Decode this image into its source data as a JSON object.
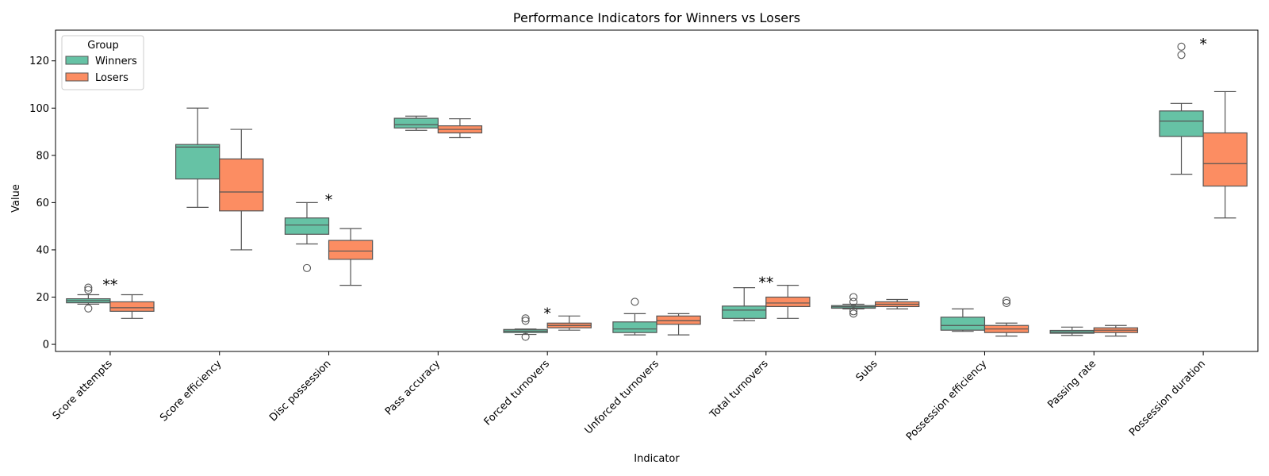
{
  "chart_data": {
    "type": "box",
    "title": "Performance Indicators for Winners vs Losers",
    "xlabel": "Indicator",
    "ylabel": "Value",
    "ylim": [
      -3,
      133
    ],
    "yticks": [
      0,
      20,
      40,
      60,
      80,
      100,
      120
    ],
    "grid": false,
    "legend": {
      "title": "Group",
      "placement": "top-left"
    },
    "categories": [
      "Score attempts",
      "Score efficiency",
      "Disc possession",
      "Pass accuracy",
      "Forced turnovers",
      "Unforced turnovers",
      "Total turnovers",
      "Subs",
      "Possession efficiency",
      "Passing rate",
      "Possession duration"
    ],
    "series": [
      {
        "name": "Winners",
        "color": "#66c2a5",
        "boxes": [
          {
            "q1": 17.6,
            "median": 18.5,
            "q3": 19.3,
            "whislo": 17.0,
            "whishi": 21.0,
            "fliers": [
              15.2,
              23.0,
              24.0
            ]
          },
          {
            "q1": 70.0,
            "median": 83.5,
            "q3": 84.6,
            "whislo": 58.0,
            "whishi": 100.0,
            "fliers": []
          },
          {
            "q1": 46.6,
            "median": 50.5,
            "q3": 53.5,
            "whislo": 42.5,
            "whishi": 60.0,
            "fliers": [
              32.3
            ]
          },
          {
            "q1": 91.6,
            "median": 93.0,
            "q3": 95.7,
            "whislo": 90.6,
            "whishi": 96.6,
            "fliers": []
          },
          {
            "q1": 5.0,
            "median": 5.6,
            "q3": 6.3,
            "whislo": 4.2,
            "whishi": 6.5,
            "fliers": [
              3.2,
              10.0,
              11.0
            ]
          },
          {
            "q1": 5.0,
            "median": 6.5,
            "q3": 9.5,
            "whislo": 4.0,
            "whishi": 13.0,
            "fliers": [
              18.0
            ]
          },
          {
            "q1": 11.0,
            "median": 14.5,
            "q3": 16.2,
            "whislo": 10.0,
            "whishi": 24.0,
            "fliers": []
          },
          {
            "q1": 15.3,
            "median": 15.9,
            "q3": 16.4,
            "whislo": 15.0,
            "whishi": 17.0,
            "fliers": [
              13.0,
              14.0,
              18.0,
              20.0
            ]
          },
          {
            "q1": 6.0,
            "median": 8.0,
            "q3": 11.5,
            "whislo": 5.5,
            "whishi": 15.0,
            "fliers": []
          },
          {
            "q1": 4.7,
            "median": 5.2,
            "q3": 5.9,
            "whislo": 3.8,
            "whishi": 7.3,
            "fliers": []
          },
          {
            "q1": 88.0,
            "median": 94.5,
            "q3": 98.8,
            "whislo": 72.0,
            "whishi": 102.0,
            "fliers": [
              122.5,
              126.0
            ]
          }
        ]
      },
      {
        "name": "Losers",
        "color": "#fc8d62",
        "boxes": [
          {
            "q1": 14.0,
            "median": 15.5,
            "q3": 18.0,
            "whislo": 11.0,
            "whishi": 21.0,
            "fliers": []
          },
          {
            "q1": 56.5,
            "median": 64.5,
            "q3": 78.5,
            "whislo": 40.0,
            "whishi": 91.0,
            "fliers": []
          },
          {
            "q1": 36.0,
            "median": 39.5,
            "q3": 44.0,
            "whislo": 25.0,
            "whishi": 49.0,
            "fliers": []
          },
          {
            "q1": 89.5,
            "median": 91.0,
            "q3": 92.5,
            "whislo": 87.5,
            "whishi": 95.5,
            "fliers": []
          },
          {
            "q1": 7.0,
            "median": 8.0,
            "q3": 9.0,
            "whislo": 6.0,
            "whishi": 12.0,
            "fliers": []
          },
          {
            "q1": 8.5,
            "median": 10.0,
            "q3": 12.0,
            "whislo": 4.0,
            "whishi": 13.0,
            "fliers": []
          },
          {
            "q1": 16.0,
            "median": 17.5,
            "q3": 20.0,
            "whislo": 11.0,
            "whishi": 25.0,
            "fliers": []
          },
          {
            "q1": 16.0,
            "median": 17.0,
            "q3": 18.0,
            "whislo": 15.0,
            "whishi": 19.0,
            "fliers": []
          },
          {
            "q1": 5.0,
            "median": 6.5,
            "q3": 8.0,
            "whislo": 3.5,
            "whishi": 9.0,
            "fliers": [
              17.5,
              18.5
            ]
          },
          {
            "q1": 5.0,
            "median": 6.0,
            "q3": 7.0,
            "whislo": 3.5,
            "whishi": 8.0,
            "fliers": []
          },
          {
            "q1": 67.0,
            "median": 76.5,
            "q3": 89.5,
            "whislo": 53.5,
            "whishi": 107.0,
            "fliers": []
          }
        ]
      }
    ],
    "annotations": [
      {
        "category_index": 0,
        "text": "**",
        "y": 25.0
      },
      {
        "category_index": 2,
        "text": "*",
        "y": 61.0
      },
      {
        "category_index": 4,
        "text": "*",
        "y": 13.0
      },
      {
        "category_index": 6,
        "text": "**",
        "y": 26.0
      },
      {
        "category_index": 10,
        "text": "*",
        "y": 127.0
      }
    ]
  }
}
